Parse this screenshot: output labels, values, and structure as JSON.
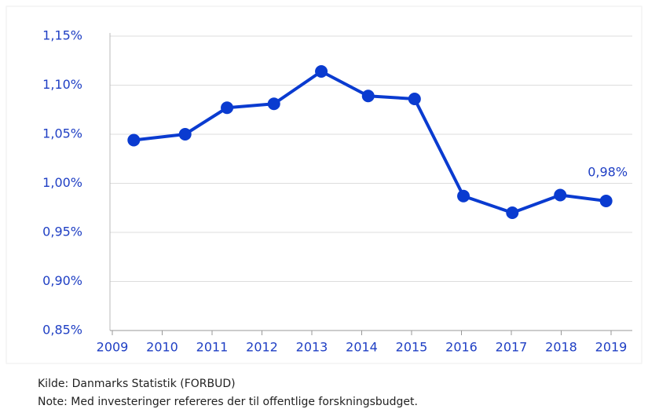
{
  "chart_data": {
    "type": "line",
    "x": [
      2009.43,
      2010.46,
      2011.3,
      2012.24,
      2013.19,
      2014.13,
      2015.06,
      2016.04,
      2017.02,
      2017.98,
      2018.9
    ],
    "series": [
      {
        "color": "#0a3bd0",
        "values": [
          1.044,
          1.05,
          1.077,
          1.081,
          1.114,
          1.089,
          1.086,
          0.987,
          0.97,
          0.988,
          0.982
        ],
        "value_labels": [
          null,
          null,
          null,
          null,
          null,
          null,
          null,
          null,
          null,
          null,
          "0,98%"
        ]
      }
    ],
    "xlim": [
      2009,
      2019
    ],
    "xticks": [
      2009,
      2010,
      2011,
      2012,
      2013,
      2014,
      2015,
      2016,
      2017,
      2018,
      2019
    ],
    "ylim": [
      0.85,
      1.15
    ],
    "yticks": [
      {
        "value": 0.85,
        "label": "0,85%"
      },
      {
        "value": 0.9,
        "label": "0,90%"
      },
      {
        "value": 0.95,
        "label": "0,95%"
      },
      {
        "value": 1.0,
        "label": "1,00%"
      },
      {
        "value": 1.05,
        "label": "1,05%"
      },
      {
        "value": 1.1,
        "label": "1,10%"
      },
      {
        "value": 1.15,
        "label": "1,15%"
      }
    ],
    "grid": true,
    "source": "Kilde: Danmarks Statistik (FORBUD)",
    "note": "Note: Med investeringer refereres der til offentlige forskningsbudget."
  }
}
